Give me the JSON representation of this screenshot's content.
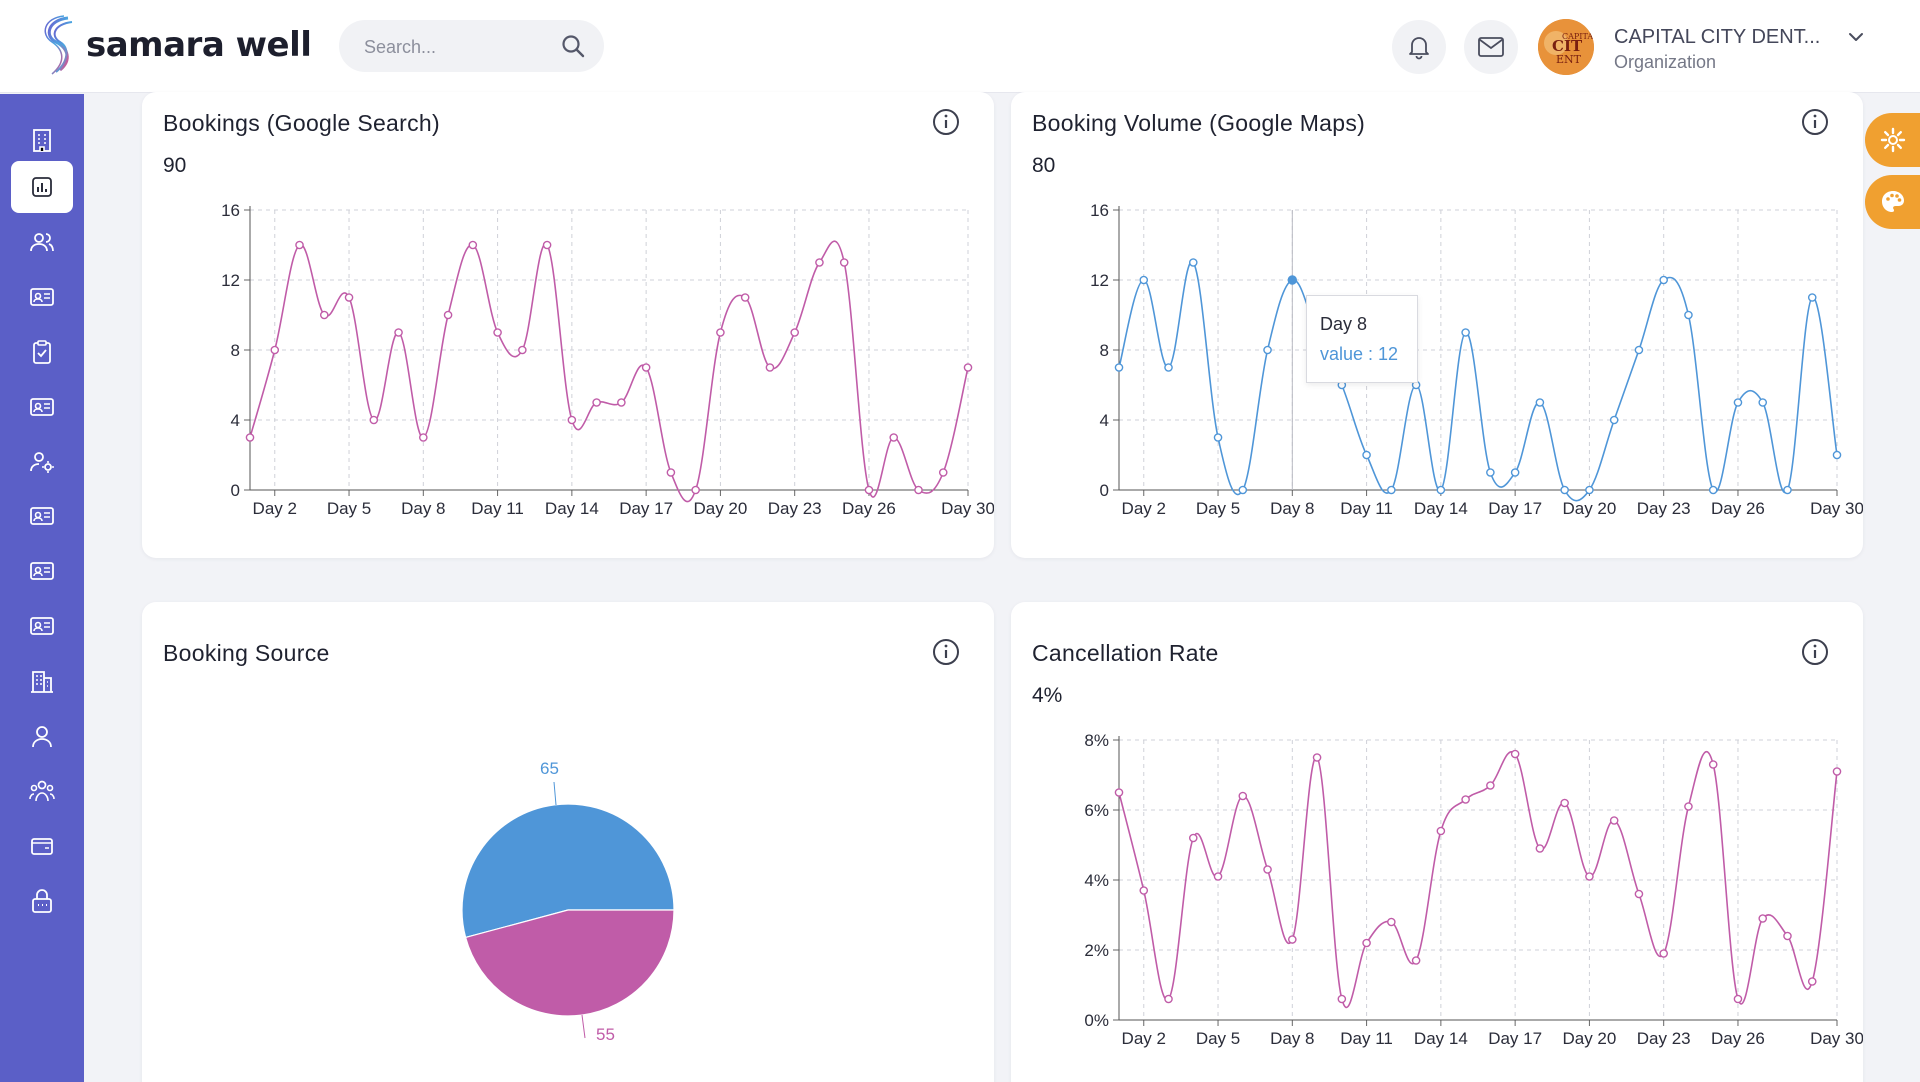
{
  "app": {
    "brand": "samara well"
  },
  "header": {
    "search_placeholder": "Search...",
    "org_name": "CAPITAL CITY DENT...",
    "org_role": "Organization",
    "avatar_text": "CAPITAL CITY DENT"
  },
  "sidebar": {
    "items": [
      {
        "icon": "building-icon",
        "active": false
      },
      {
        "icon": "bar-chart-icon",
        "active": true
      },
      {
        "icon": "users-icon",
        "active": false
      },
      {
        "icon": "id-card-icon",
        "active": false
      },
      {
        "icon": "clipboard-check-icon",
        "active": false
      },
      {
        "icon": "id-card-icon",
        "active": false
      },
      {
        "icon": "user-settings-icon",
        "active": false
      },
      {
        "icon": "id-card-icon",
        "active": false
      },
      {
        "icon": "id-card-icon",
        "active": false
      },
      {
        "icon": "id-card-icon",
        "active": false
      },
      {
        "icon": "office-building-icon",
        "active": false
      },
      {
        "icon": "user-icon",
        "active": false
      },
      {
        "icon": "team-icon",
        "active": false
      },
      {
        "icon": "wallet-icon",
        "active": false
      },
      {
        "icon": "lock-icon",
        "active": false
      }
    ]
  },
  "colors": {
    "sidebar": "#5b5fc7",
    "accent_orange": "#f0a030",
    "pink": "#c05ca8",
    "blue": "#4f96d8"
  },
  "cards": {
    "google_search": {
      "title": "Bookings (Google Search)",
      "value": "90"
    },
    "google_maps": {
      "title": "Booking Volume (Google Maps)",
      "value": "80"
    },
    "source": {
      "title": "Booking Source"
    },
    "cancellation": {
      "title": "Cancellation Rate",
      "value": "4%"
    }
  },
  "tooltip": {
    "label": "Day 8",
    "value_text": "value : 12"
  },
  "chart_data": [
    {
      "type": "line",
      "title": "Bookings (Google Search)",
      "x": [
        "Day 1",
        "Day 2",
        "Day 3",
        "Day 4",
        "Day 5",
        "Day 6",
        "Day 7",
        "Day 8",
        "Day 9",
        "Day 10",
        "Day 11",
        "Day 12",
        "Day 13",
        "Day 14",
        "Day 15",
        "Day 16",
        "Day 17",
        "Day 18",
        "Day 19",
        "Day 20",
        "Day 21",
        "Day 22",
        "Day 23",
        "Day 24",
        "Day 25",
        "Day 26",
        "Day 27",
        "Day 28",
        "Day 29",
        "Day 30"
      ],
      "xtick_labels": [
        "Day 2",
        "Day 5",
        "Day 8",
        "Day 11",
        "Day 14",
        "Day 17",
        "Day 20",
        "Day 23",
        "Day 26",
        "Day 30"
      ],
      "values": [
        3,
        8,
        14,
        10,
        11,
        4,
        9,
        3,
        10,
        14,
        9,
        8,
        14,
        4,
        5,
        5,
        7,
        1,
        0,
        9,
        11,
        7,
        9,
        13,
        13,
        0,
        3,
        0,
        1,
        7
      ],
      "ylim": [
        0,
        16
      ],
      "yticks": [
        "0",
        "4",
        "8",
        "12",
        "16"
      ],
      "color": "#c05ca8",
      "grid": true
    },
    {
      "type": "line",
      "title": "Booking Volume (Google Maps)",
      "x": [
        "Day 1",
        "Day 2",
        "Day 3",
        "Day 4",
        "Day 5",
        "Day 6",
        "Day 7",
        "Day 8",
        "Day 9",
        "Day 10",
        "Day 11",
        "Day 12",
        "Day 13",
        "Day 14",
        "Day 15",
        "Day 16",
        "Day 17",
        "Day 18",
        "Day 19",
        "Day 20",
        "Day 21",
        "Day 22",
        "Day 23",
        "Day 24",
        "Day 25",
        "Day 26",
        "Day 27",
        "Day 28",
        "Day 29",
        "Day 30"
      ],
      "xtick_labels": [
        "Day 2",
        "Day 5",
        "Day 8",
        "Day 11",
        "Day 14",
        "Day 17",
        "Day 20",
        "Day 23",
        "Day 26",
        "Day 30"
      ],
      "values": [
        7,
        12,
        7,
        13,
        3,
        0,
        8,
        12,
        9,
        6,
        2,
        0,
        6,
        0,
        9,
        1,
        1,
        5,
        0,
        0,
        4,
        8,
        12,
        10,
        0,
        5,
        5,
        0,
        11,
        2
      ],
      "ylim": [
        0,
        16
      ],
      "yticks": [
        "0",
        "4",
        "8",
        "12",
        "16"
      ],
      "color": "#4f96d8",
      "grid": true,
      "highlight_index": 7
    },
    {
      "type": "pie",
      "title": "Booking Source",
      "slices": [
        {
          "value": 65,
          "label": "65",
          "color": "#4f96d8"
        },
        {
          "value": 55,
          "label": "55",
          "color": "#c05ca8"
        }
      ]
    },
    {
      "type": "line",
      "title": "Cancellation Rate",
      "x": [
        "Day 1",
        "Day 2",
        "Day 3",
        "Day 4",
        "Day 5",
        "Day 6",
        "Day 7",
        "Day 8",
        "Day 9",
        "Day 10",
        "Day 11",
        "Day 12",
        "Day 13",
        "Day 14",
        "Day 15",
        "Day 16",
        "Day 17",
        "Day 18",
        "Day 19",
        "Day 20",
        "Day 21",
        "Day 22",
        "Day 23",
        "Day 24",
        "Day 25",
        "Day 26",
        "Day 27",
        "Day 28",
        "Day 29",
        "Day 30"
      ],
      "xtick_labels": [
        "Day 2",
        "Day 5",
        "Day 8",
        "Day 11",
        "Day 14",
        "Day 17",
        "Day 20",
        "Day 23",
        "Day 26",
        "Day 30"
      ],
      "values": [
        6.5,
        3.7,
        0.6,
        5.2,
        4.1,
        6.4,
        4.3,
        2.3,
        7.5,
        0.6,
        2.2,
        2.8,
        1.7,
        5.4,
        6.3,
        6.7,
        7.6,
        4.9,
        6.2,
        4.1,
        5.7,
        3.6,
        1.9,
        6.1,
        7.3,
        0.6,
        2.9,
        2.4,
        1.1,
        7.1
      ],
      "ylim": [
        0,
        8
      ],
      "yticks": [
        "0%",
        "2%",
        "4%",
        "6%",
        "8%"
      ],
      "color": "#c05ca8",
      "grid": true
    }
  ]
}
